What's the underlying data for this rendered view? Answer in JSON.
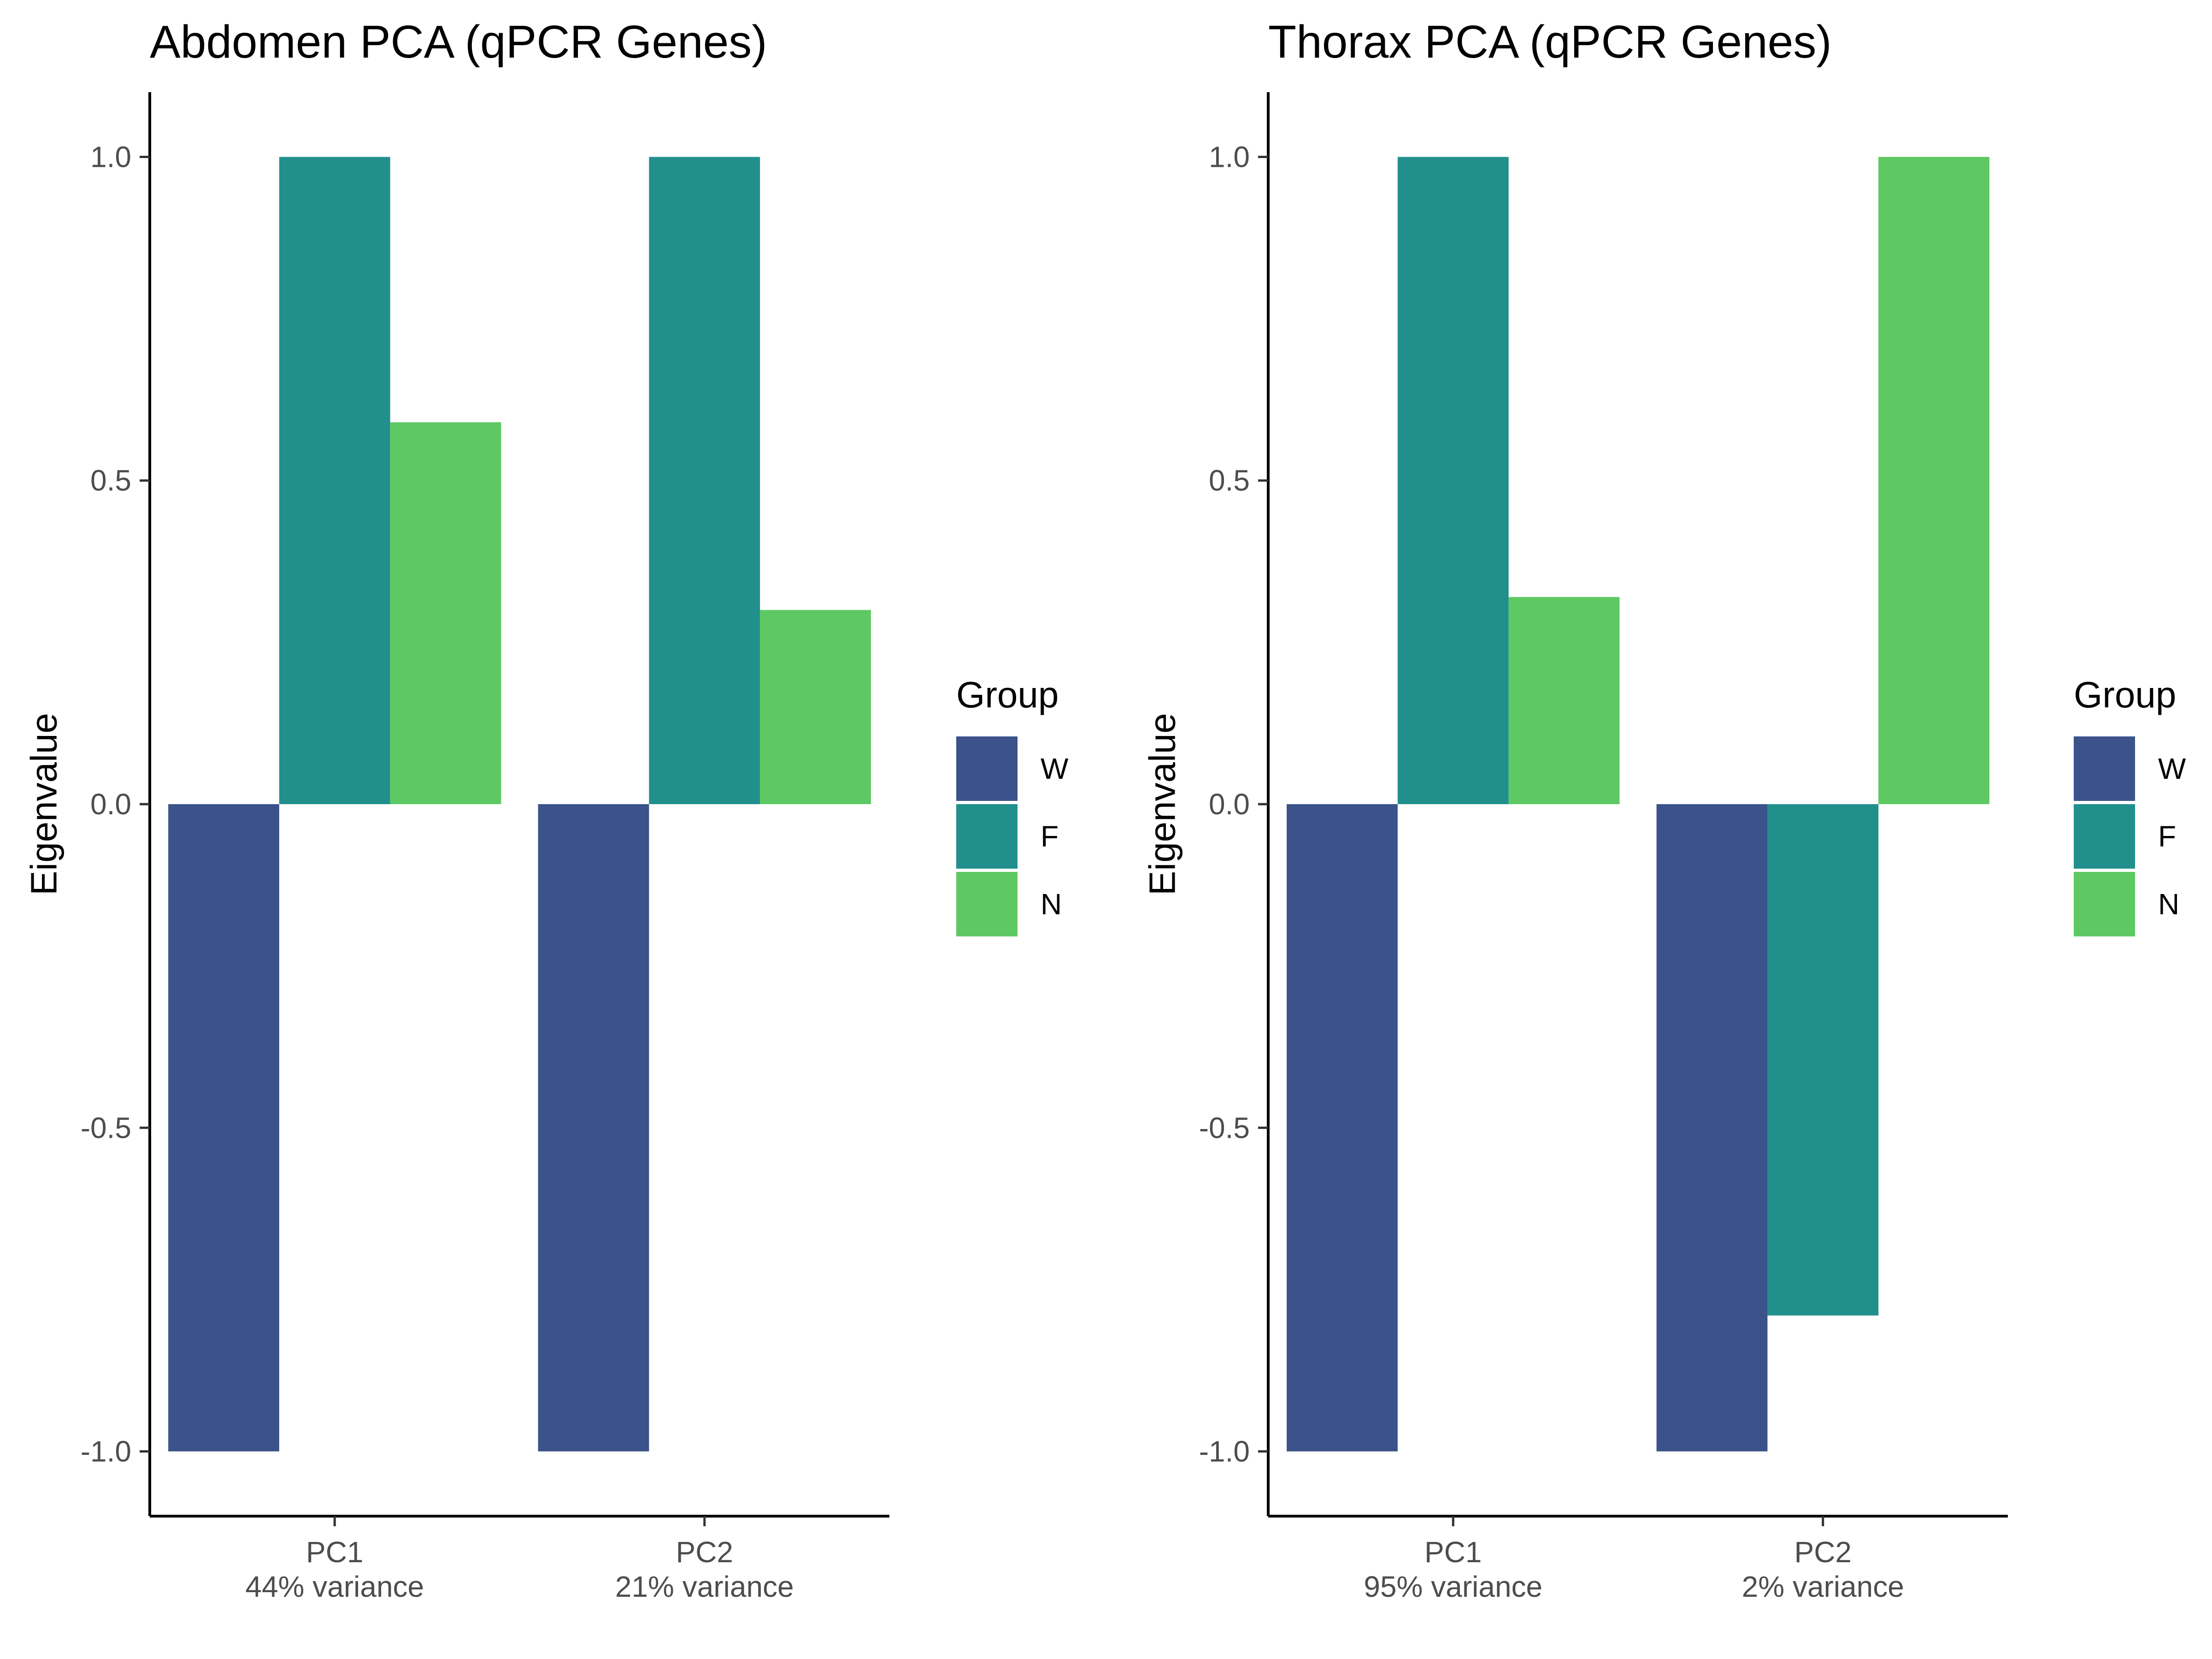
{
  "chart_data": [
    {
      "type": "bar",
      "title": "Abdomen PCA (qPCR Genes)",
      "xlabel": "",
      "ylabel": "Eigenvalue",
      "ylim": [
        -1.1,
        1.1
      ],
      "yticks": [
        -1.0,
        -0.5,
        0.0,
        0.5,
        1.0
      ],
      "ytick_labels": [
        "-1.0",
        "-0.5",
        "0.0",
        "0.5",
        "1.0"
      ],
      "categories": [
        "PC1",
        "PC2"
      ],
      "category_sublabels": [
        "44% variance",
        "21% variance"
      ],
      "series": [
        {
          "name": "W",
          "color": "#3b528b",
          "values": [
            -1.0,
            -1.0
          ]
        },
        {
          "name": "F",
          "color": "#21908c",
          "values": [
            1.0,
            1.0
          ]
        },
        {
          "name": "N",
          "color": "#5ec962",
          "values": [
            0.59,
            0.3
          ]
        }
      ],
      "legend": {
        "title": "Group",
        "position": "right"
      },
      "grid": false
    },
    {
      "type": "bar",
      "title": "Thorax PCA (qPCR Genes)",
      "xlabel": "",
      "ylabel": "Eigenvalue",
      "ylim": [
        -1.1,
        1.1
      ],
      "yticks": [
        -1.0,
        -0.5,
        0.0,
        0.5,
        1.0
      ],
      "ytick_labels": [
        "-1.0",
        "-0.5",
        "0.0",
        "0.5",
        "1.0"
      ],
      "categories": [
        "PC1",
        "PC2"
      ],
      "category_sublabels": [
        "95% variance",
        "2% variance"
      ],
      "series": [
        {
          "name": "W",
          "color": "#3b528b",
          "values": [
            -1.0,
            -1.0
          ]
        },
        {
          "name": "F",
          "color": "#21908c",
          "values": [
            1.0,
            -0.79
          ]
        },
        {
          "name": "N",
          "color": "#5ec962",
          "values": [
            0.32,
            1.0
          ]
        }
      ],
      "legend": {
        "title": "Group",
        "position": "right"
      },
      "grid": false
    }
  ]
}
